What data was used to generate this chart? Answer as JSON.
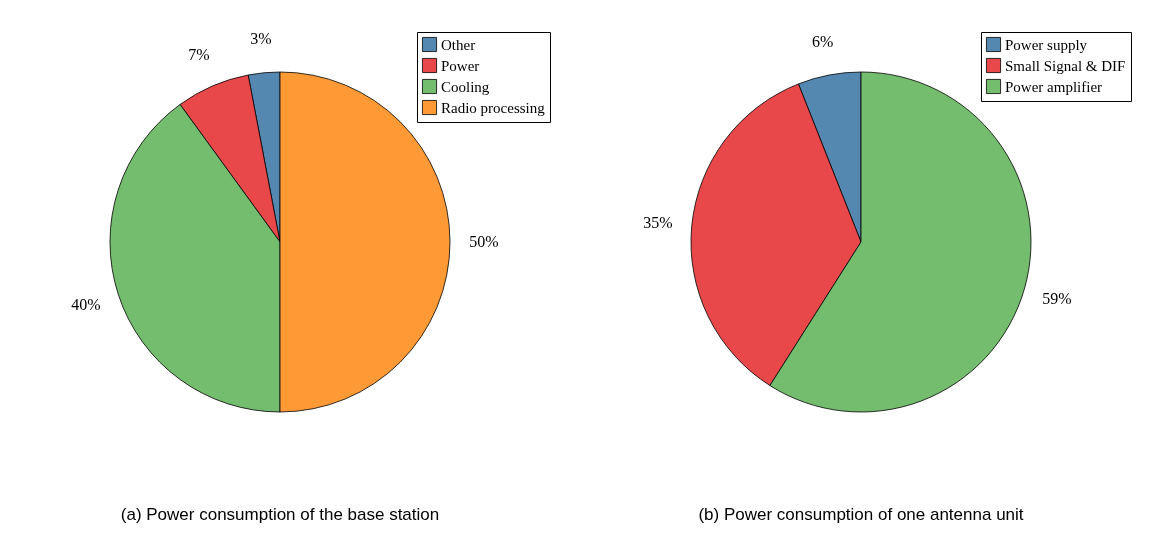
{
  "chart_data": [
    {
      "type": "pie",
      "title": "(a) Power consumption of the base station",
      "categories": [
        "Other",
        "Power",
        "Cooling",
        "Radio processing"
      ],
      "values": [
        3,
        7,
        40,
        50
      ],
      "value_labels": [
        "3%",
        "7%",
        "40%",
        "50%"
      ],
      "colors": [
        "#5588b0",
        "#e8484a",
        "#74bd6e",
        "#fe9a36"
      ],
      "legend": "top right"
    },
    {
      "type": "pie",
      "title": "(b) Power consumption of one antenna unit",
      "categories": [
        "Power supply",
        "Small Signal & DIF",
        "Power amplifier"
      ],
      "values": [
        6,
        35,
        59
      ],
      "value_labels": [
        "6%",
        "35%",
        "59%"
      ],
      "colors": [
        "#5588b0",
        "#e8484a",
        "#74bd6e"
      ],
      "legend": "top right"
    }
  ]
}
